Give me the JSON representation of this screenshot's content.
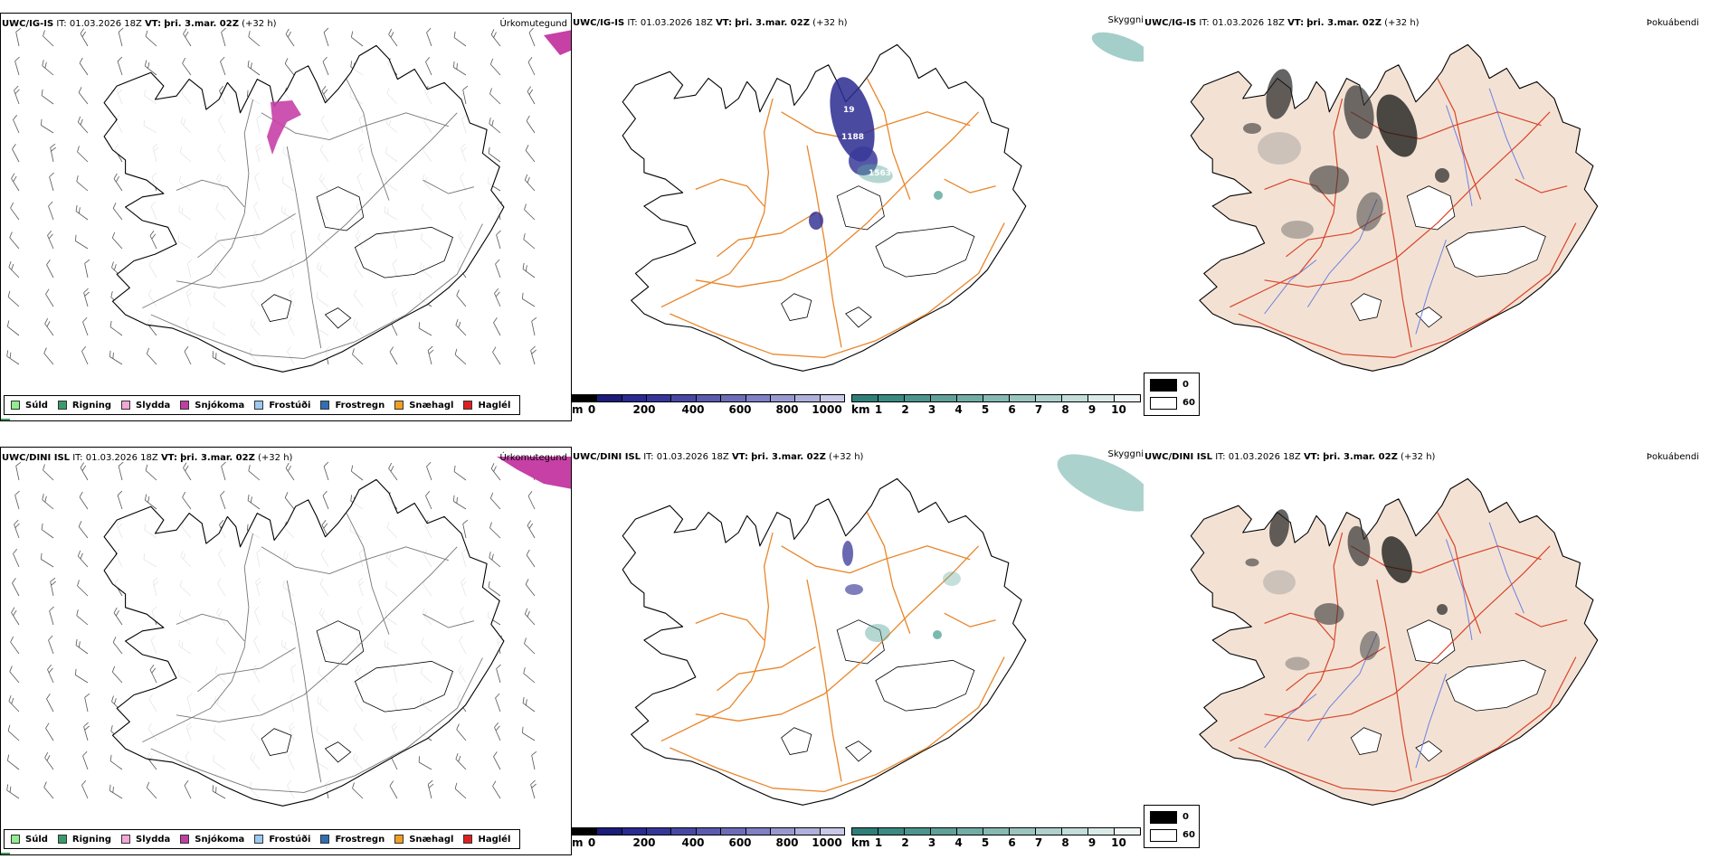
{
  "rows": [
    {
      "model": "UWC/IG-IS",
      "it_label": "IT:",
      "it_value": "01.03.2026 18Z",
      "vt_label": "VT:",
      "vt_value": "þri. 3.mar. 02Z",
      "lead": "(+32 h)"
    },
    {
      "model": "UWC/DINI ISL",
      "it_label": "IT:",
      "it_value": "01.03.2026 18Z",
      "vt_label": "VT:",
      "vt_value": "þri. 3.mar. 02Z",
      "lead": "(+32 h)"
    }
  ],
  "panel_titles": {
    "precip": "Úrkomutegund",
    "cloud": "Skyggni",
    "fog": "Þokuábendi"
  },
  "precip_legend": [
    {
      "label": "Súld",
      "color": "#90ee90"
    },
    {
      "label": "Rigning",
      "color": "#3c9a6a"
    },
    {
      "label": "Slydda",
      "color": "#f4a6d7"
    },
    {
      "label": "Snjókoma",
      "color": "#c040a0"
    },
    {
      "label": "Frostúði",
      "color": "#9cc9f0"
    },
    {
      "label": "Frostregn",
      "color": "#2f6fb5"
    },
    {
      "label": "Snæhagl",
      "color": "#f0a020"
    },
    {
      "label": "Haglél",
      "color": "#e02020"
    }
  ],
  "height_bar": {
    "unit": "m",
    "ticks": [
      "0",
      "200",
      "400",
      "600",
      "800",
      "1000"
    ],
    "colors": [
      "#000000",
      "#1c1c7a",
      "#2a2a90",
      "#36369a",
      "#4848a4",
      "#5a5aae",
      "#6c6cb8",
      "#8080c4",
      "#9898d0",
      "#b0b0dc",
      "#c8c8e8"
    ]
  },
  "visibility_bar": {
    "unit": "km",
    "ticks": [
      "1",
      "2",
      "3",
      "4",
      "5",
      "6",
      "7",
      "8",
      "9",
      "10"
    ],
    "colors": [
      "#2f7f78",
      "#3a8a82",
      "#4c958d",
      "#5fa199",
      "#72ada5",
      "#86b9b2",
      "#9ac5bf",
      "#aed1cc",
      "#c3ddd9",
      "#d9e9e7",
      "#eef5f4"
    ]
  },
  "fog_legend": {
    "items": [
      {
        "label": "0",
        "color": "#000000"
      },
      {
        "label": "60",
        "color": "#ffffff"
      }
    ]
  },
  "map_colors": {
    "coast": "#000000",
    "roads_orange": "#e8862a",
    "roads_red": "#d9442a",
    "rivers": "#6d7fe0",
    "land_beige": "#f3e2d4",
    "snow_magenta": "#c640a6",
    "barb_gray": "#555555",
    "cloud_teal": "#5aa69c",
    "terrain_blue": "#2a2a90"
  },
  "height_labels": [
    "19",
    "1188",
    "1563"
  ]
}
